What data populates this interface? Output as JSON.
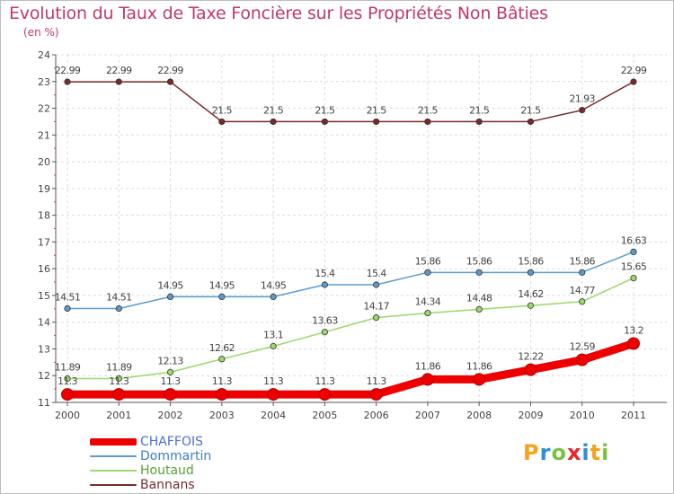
{
  "header": {
    "title": "Evolution du Taux de Taxe Foncière sur les Propriétés Non Bâties",
    "unit": "(en %)"
  },
  "logo": {
    "letters": [
      "P",
      "r",
      "o",
      "x",
      "i",
      "t",
      "i"
    ],
    "colors": [
      "#f7a21b",
      "#2e8fd6",
      "#7cc242",
      "#e8262b",
      "#2e8fd6",
      "#f7a21b",
      "#7cc242"
    ]
  },
  "chart_data": {
    "type": "line",
    "title": "Evolution du Taux de Taxe Foncière sur les Propriétés Non Bâties",
    "ylabel": "(en %)",
    "x": [
      "2000",
      "2001",
      "2002",
      "2003",
      "2004",
      "2005",
      "2006",
      "2007",
      "2008",
      "2009",
      "2010",
      "2011"
    ],
    "ylim": [
      11,
      24
    ],
    "yticks": [
      "11",
      "12",
      "13",
      "14",
      "15",
      "16",
      "17",
      "18",
      "19",
      "20",
      "21",
      "22",
      "23",
      "24"
    ],
    "grid": true,
    "legend_position": "bottom-left",
    "series": [
      {
        "name": "CHAFFOIS",
        "color": "#ee0000",
        "values": [
          11.3,
          11.3,
          11.3,
          11.3,
          11.3,
          11.3,
          11.3,
          11.86,
          11.86,
          12.22,
          12.59,
          13.2
        ],
        "labels": [
          "11.3",
          "11.3",
          "11.3",
          "11.3",
          "11.3",
          "11.3",
          "11.3",
          "11.86",
          "11.86",
          "12.22",
          "12.59",
          "13.2"
        ]
      },
      {
        "name": "Dommartin",
        "color": "#5b9bd0",
        "values": [
          14.51,
          14.51,
          14.95,
          14.95,
          14.95,
          15.4,
          15.4,
          15.86,
          15.86,
          15.86,
          15.86,
          16.63
        ],
        "labels": [
          "14.51",
          "14.51",
          "14.95",
          "14.95",
          "14.95",
          "15.4",
          "15.4",
          "15.86",
          "15.86",
          "15.86",
          "15.86",
          "16.63"
        ]
      },
      {
        "name": "Houtaud",
        "color": "#9bd86a",
        "values": [
          11.89,
          11.89,
          12.13,
          12.62,
          13.1,
          13.63,
          14.17,
          14.34,
          14.48,
          14.62,
          14.77,
          15.65
        ],
        "labels": [
          "11.89",
          "11.89",
          "12.13",
          "12.62",
          "13.1",
          "13.63",
          "14.17",
          "14.34",
          "14.48",
          "14.62",
          "14.77",
          "15.65"
        ]
      },
      {
        "name": "Bannans",
        "color": "#7b2a2a",
        "values": [
          22.99,
          22.99,
          22.99,
          21.5,
          21.5,
          21.5,
          21.5,
          21.5,
          21.5,
          21.5,
          21.93,
          22.99
        ],
        "labels": [
          "22.99",
          "22.99",
          "22.99",
          "21.5",
          "21.5",
          "21.5",
          "21.5",
          "21.5",
          "21.5",
          "21.5",
          "21.93",
          "22.99"
        ]
      }
    ]
  }
}
